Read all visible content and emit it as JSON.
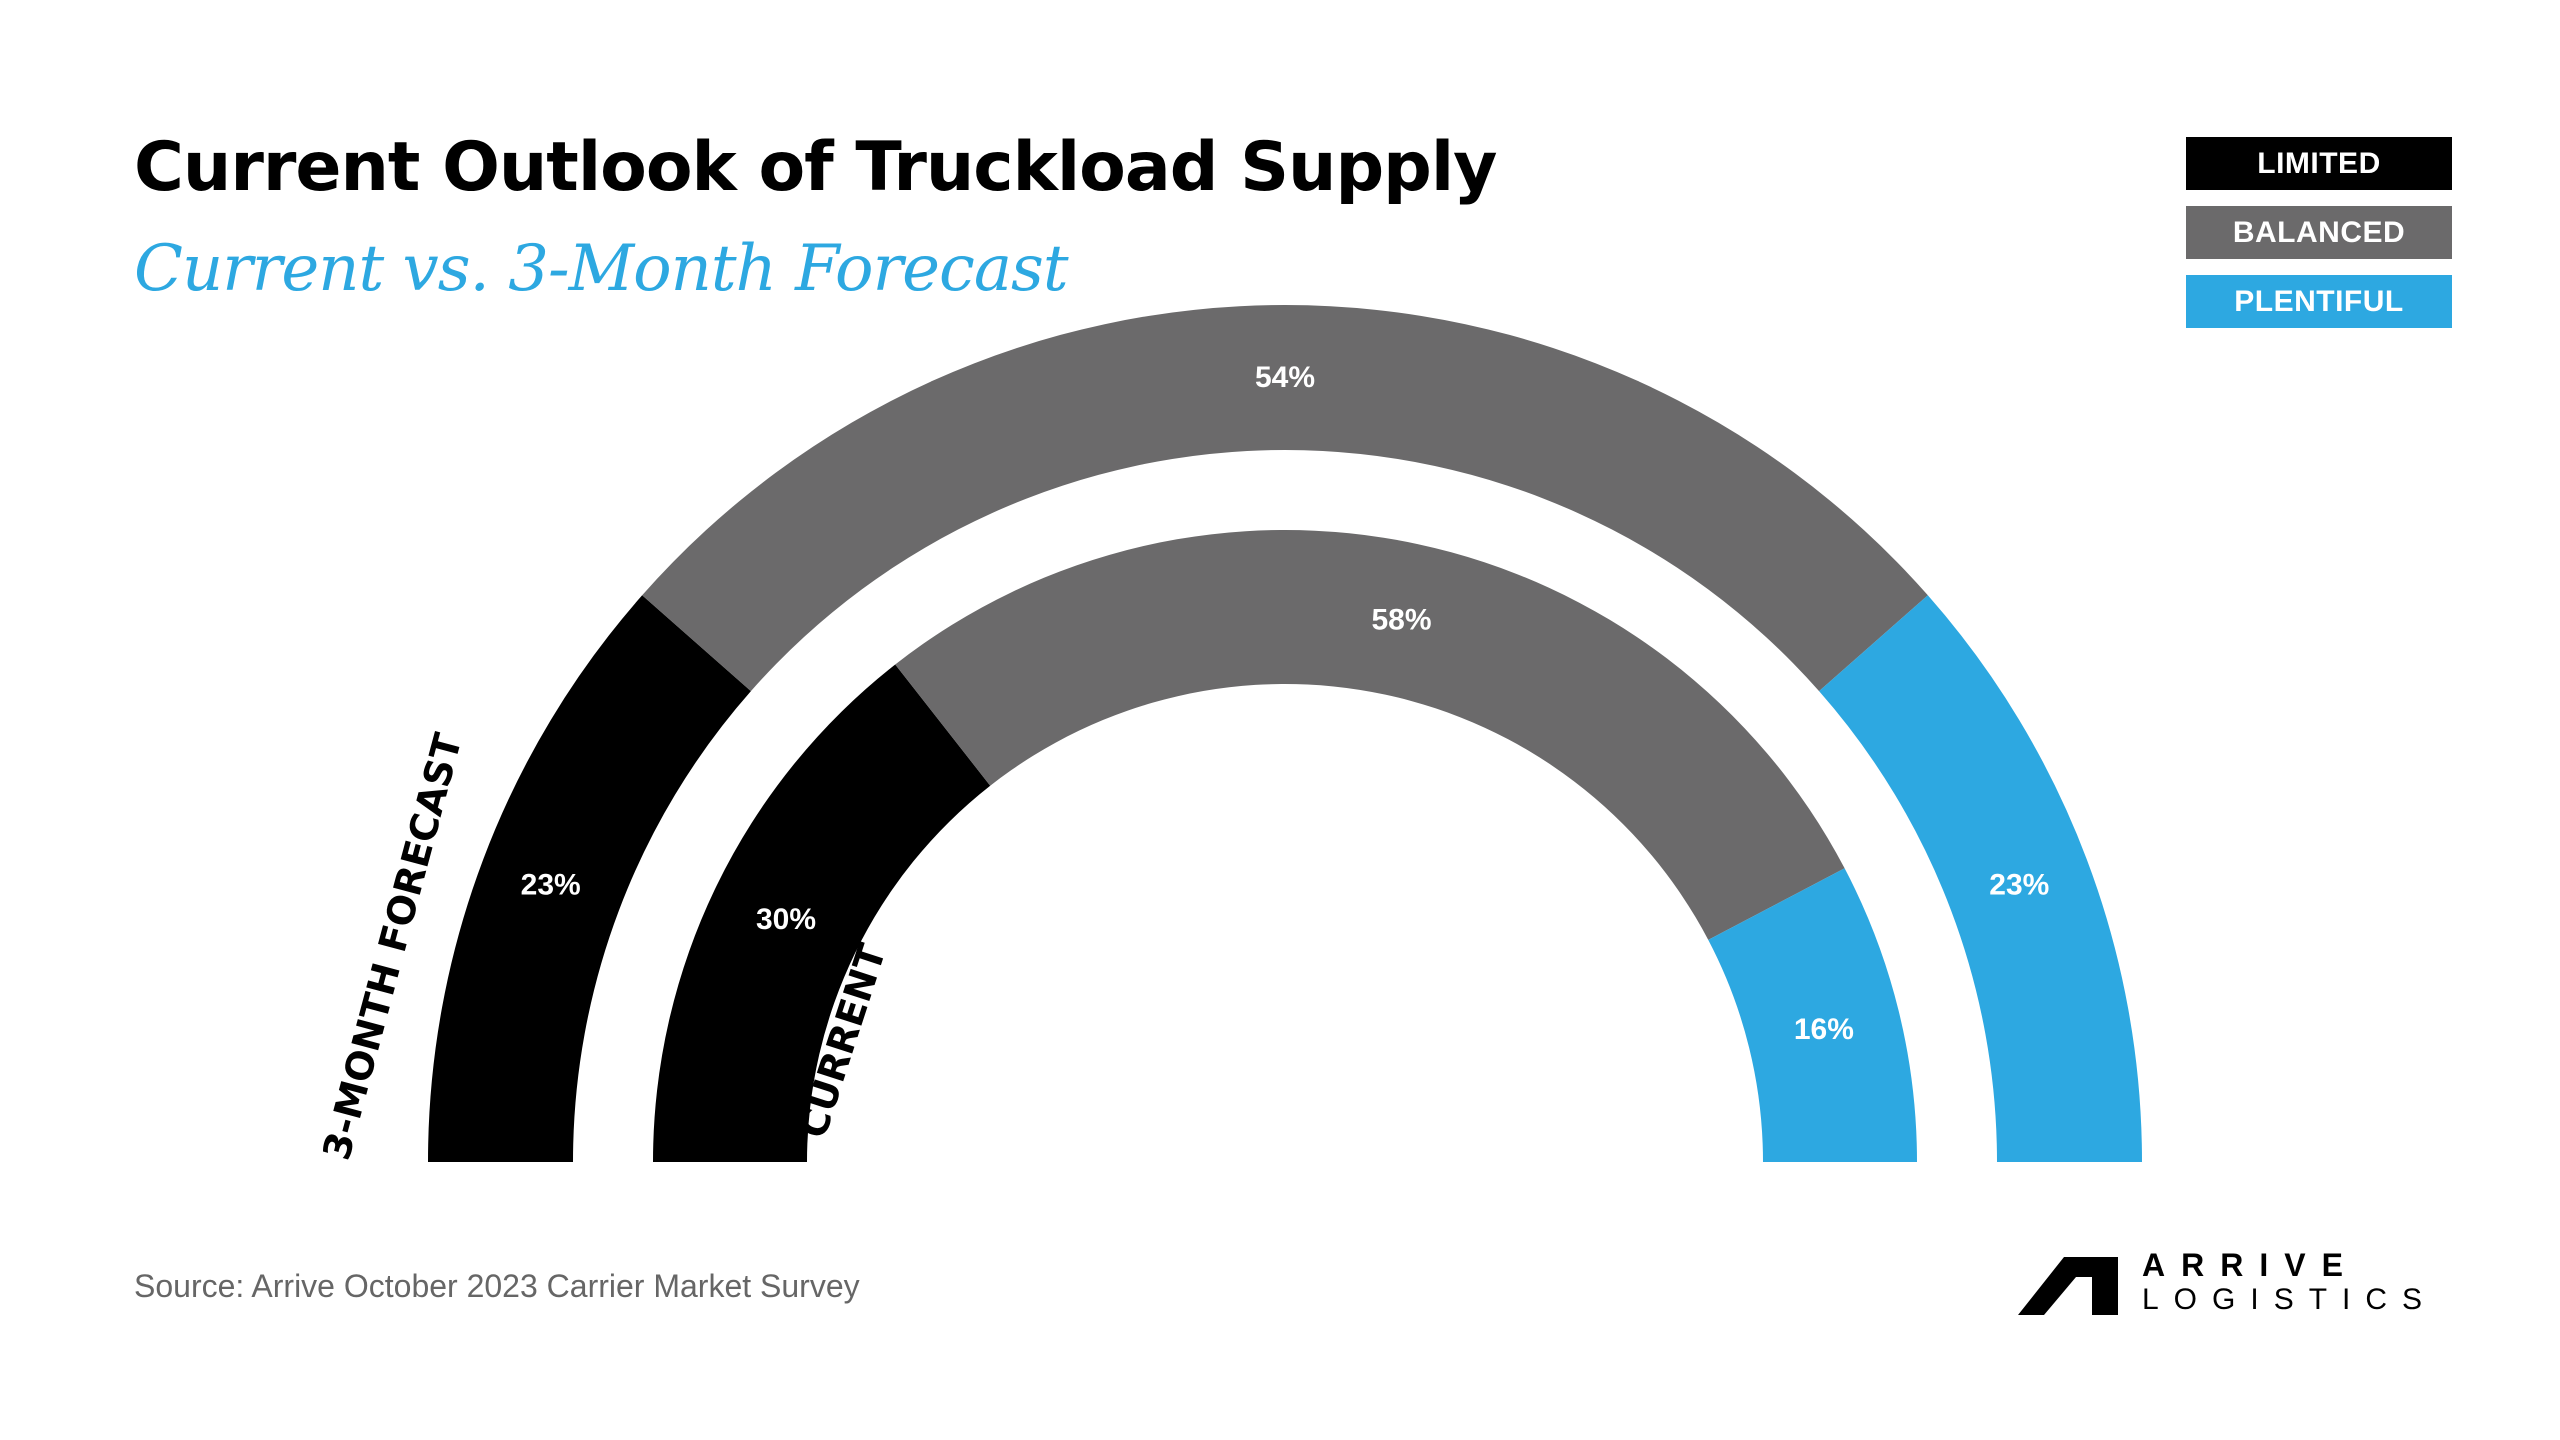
{
  "title": "Current Outlook of Truckload Supply",
  "subtitle": "Current vs. 3-Month Forecast",
  "legend": [
    {
      "label": "LIMITED",
      "color": "#000000"
    },
    {
      "label": "BALANCED",
      "color": "#6b6a6b"
    },
    {
      "label": "PLENTIFUL",
      "color": "#2da8e1"
    }
  ],
  "chart_data": {
    "type": "semi-donut",
    "categories": [
      "LIMITED",
      "BALANCED",
      "PLENTIFUL"
    ],
    "series": [
      {
        "name": "3-MONTH FORECAST",
        "values": [
          23,
          54,
          23
        ]
      },
      {
        "name": "CURRENT",
        "values": [
          30,
          58,
          16
        ]
      }
    ],
    "value_suffix": "%",
    "colors": [
      "#000000",
      "#6b6a6b",
      "#2da8e1"
    ]
  },
  "source": "Source: Arrive October 2023 Carrier Market Survey",
  "logo": {
    "line1": "ARRIVE",
    "line2": "LOGISTICS"
  }
}
